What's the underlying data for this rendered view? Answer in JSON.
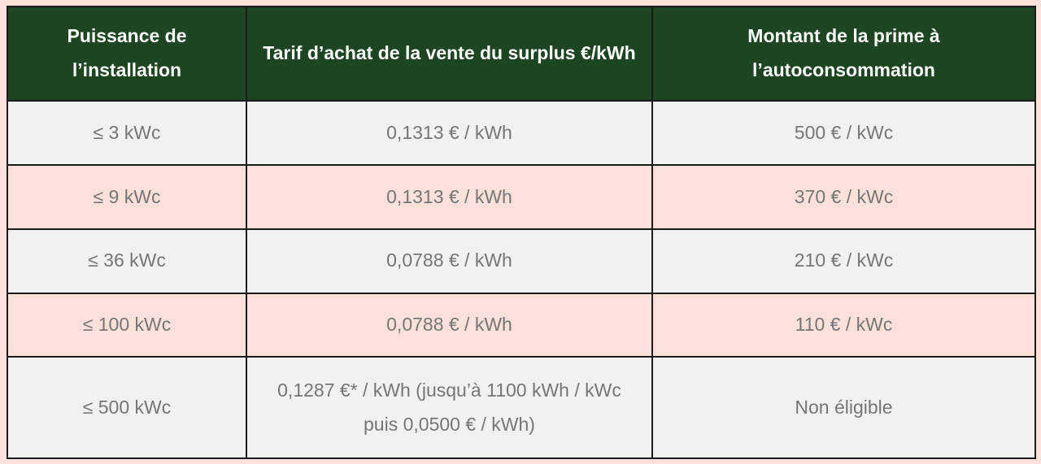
{
  "table": {
    "columns": [
      {
        "label": "Puissance de l’installation"
      },
      {
        "label": "Tarif d’achat de la vente du surplus €/kWh"
      },
      {
        "label": "Montant de la prime à l’autoconsommation"
      }
    ],
    "rows": [
      {
        "cells": [
          "≤ 3 kWc",
          "0,1313 € / kWh",
          "500 € / kWc"
        ]
      },
      {
        "cells": [
          "≤ 9 kWc",
          "0,1313 € / kWh",
          "370 € / kWc"
        ]
      },
      {
        "cells": [
          "≤ 36 kWc",
          "0,0788 € / kWh",
          "210 € / kWc"
        ]
      },
      {
        "cells": [
          "≤ 100 kWc",
          "0,0788 € / kWh",
          "110 € / kWc"
        ]
      },
      {
        "cells": [
          "≤ 500 kWc",
          "0,1287 €* / kWh (jusqu’à 1100 kWh / kWc puis 0,0500 € / kWh)",
          "Non éligible"
        ]
      }
    ]
  },
  "colors": {
    "header_background": "#1e4522",
    "header_text": "#fdfdfd",
    "row_grey": "#f1f1f1",
    "row_pink": "#fbe1da",
    "frame_background": "#fbe3dc",
    "border": "#1a1a1a",
    "body_text": "#767676"
  }
}
